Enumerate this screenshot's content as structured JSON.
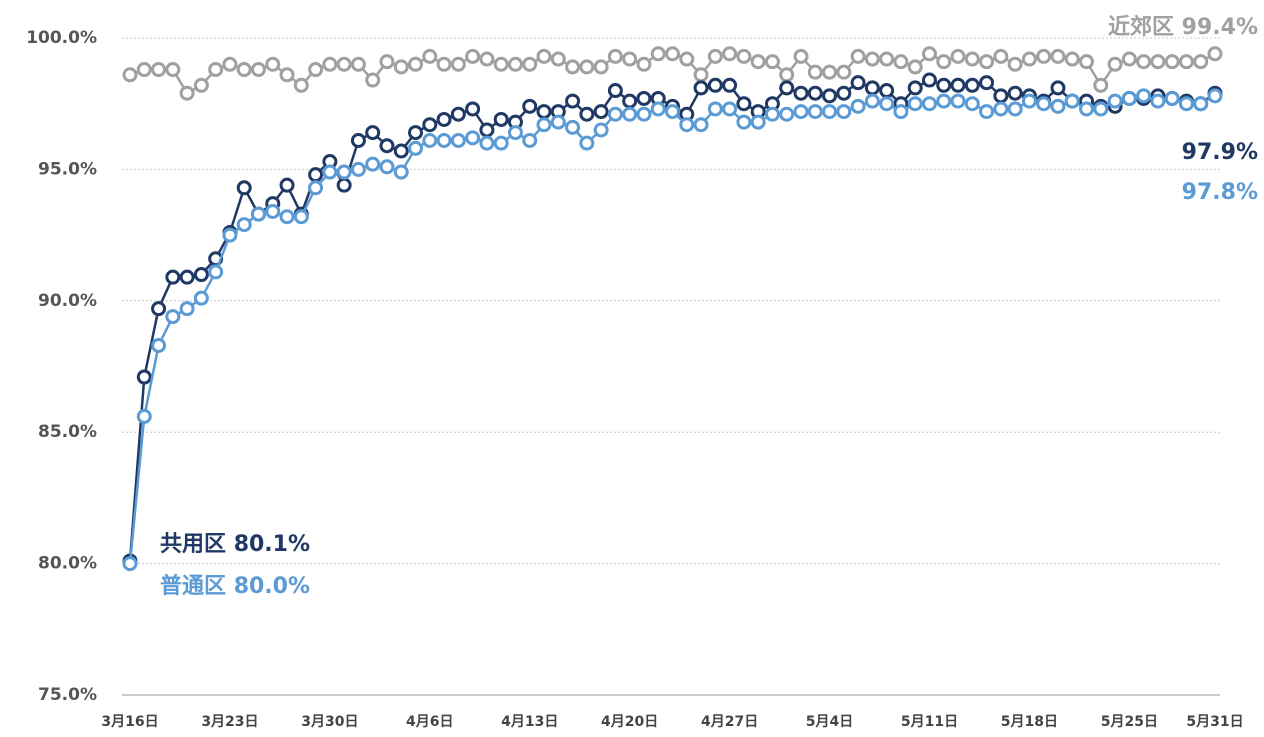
{
  "chart_data": {
    "type": "line",
    "categories": [
      "3月16日",
      null,
      null,
      null,
      null,
      null,
      null,
      "3月23日",
      null,
      null,
      null,
      null,
      null,
      null,
      "3月30日",
      null,
      null,
      null,
      null,
      null,
      null,
      "4月6日",
      null,
      null,
      null,
      null,
      null,
      null,
      "4月13日",
      null,
      null,
      null,
      null,
      null,
      null,
      "4月20日",
      null,
      null,
      null,
      null,
      null,
      null,
      "4月27日",
      null,
      null,
      null,
      null,
      null,
      null,
      "5月4日",
      null,
      null,
      null,
      null,
      null,
      null,
      "5月11日",
      null,
      null,
      null,
      null,
      null,
      null,
      "5月18日",
      null,
      null,
      null,
      null,
      null,
      null,
      "5月25日",
      null,
      null,
      null,
      null,
      null,
      "5月31日"
    ],
    "ylim": [
      75,
      100
    ],
    "yticks": [
      {
        "value": 75,
        "label": "75.0%"
      },
      {
        "value": 80,
        "label": "80.0%"
      },
      {
        "value": 85,
        "label": "85.0%"
      },
      {
        "value": 90,
        "label": "90.0%"
      },
      {
        "value": 95,
        "label": "95.0%"
      },
      {
        "value": 100,
        "label": "100.0%"
      }
    ],
    "grid": true,
    "series": [
      {
        "name": "近郊区",
        "color": "#a0a0a0",
        "values": [
          98.6,
          98.8,
          98.8,
          98.8,
          97.9,
          98.2,
          98.8,
          99.0,
          98.8,
          98.8,
          99.0,
          98.6,
          98.2,
          98.8,
          99.0,
          99.0,
          99.0,
          98.4,
          99.1,
          98.9,
          99.0,
          99.3,
          99.0,
          99.0,
          99.3,
          99.2,
          99.0,
          99.0,
          99.0,
          99.3,
          99.2,
          98.9,
          98.9,
          98.9,
          99.3,
          99.2,
          99.0,
          99.4,
          99.4,
          99.2,
          98.6,
          99.3,
          99.4,
          99.3,
          99.1,
          99.1,
          98.6,
          99.3,
          98.7,
          98.7,
          98.7,
          99.3,
          99.2,
          99.2,
          99.1,
          98.9,
          99.4,
          99.1,
          99.3,
          99.2,
          99.1,
          99.3,
          99.0,
          99.2,
          99.3,
          99.3,
          99.2,
          99.1,
          98.2,
          99.0,
          99.2,
          99.1,
          99.1,
          99.1,
          99.1,
          99.1,
          99.4
        ],
        "value_labels": [
          null,
          null,
          null,
          null,
          null,
          null,
          null,
          null,
          null,
          null,
          null,
          null,
          null,
          null,
          null,
          null,
          null,
          null,
          null,
          null,
          null,
          null,
          null,
          null,
          null,
          null,
          null,
          null,
          null,
          null,
          null,
          null,
          null,
          null,
          null,
          null,
          null,
          null,
          null,
          null,
          null,
          null,
          null,
          null,
          null,
          null,
          null,
          null,
          null,
          null,
          null,
          null,
          null,
          null,
          null,
          null,
          null,
          null,
          null,
          null,
          null,
          null,
          null,
          null,
          null,
          null,
          null,
          null,
          null,
          null,
          null,
          null,
          null,
          null,
          null,
          null,
          "99.4%"
        ]
      },
      {
        "name": "共用区",
        "color": "#1f3864",
        "values": [
          80.1,
          87.1,
          89.7,
          90.9,
          90.9,
          91.0,
          91.6,
          92.6,
          94.3,
          93.3,
          93.7,
          94.4,
          93.3,
          94.8,
          95.3,
          94.4,
          96.1,
          96.4,
          95.9,
          95.7,
          96.4,
          96.7,
          96.9,
          97.1,
          97.3,
          96.5,
          96.9,
          96.8,
          97.4,
          97.2,
          97.2,
          97.6,
          97.1,
          97.2,
          98.0,
          97.6,
          97.7,
          97.7,
          97.4,
          97.1,
          98.1,
          98.2,
          98.2,
          97.5,
          97.2,
          97.5,
          98.1,
          97.9,
          97.9,
          97.8,
          97.9,
          98.3,
          98.1,
          98.0,
          97.5,
          98.1,
          98.4,
          98.2,
          98.2,
          98.2,
          98.3,
          97.8,
          97.9,
          97.8,
          97.6,
          98.1,
          97.6,
          97.6,
          97.4,
          97.4,
          97.7,
          97.7,
          97.8,
          97.7,
          97.6,
          97.5,
          97.9
        ],
        "value_labels": [
          "80.1%",
          null,
          null,
          null,
          null,
          null,
          null,
          null,
          null,
          null,
          null,
          null,
          null,
          null,
          null,
          null,
          null,
          null,
          null,
          null,
          null,
          null,
          null,
          null,
          null,
          null,
          null,
          null,
          null,
          null,
          null,
          null,
          null,
          null,
          null,
          null,
          null,
          null,
          null,
          null,
          null,
          null,
          null,
          null,
          null,
          null,
          null,
          null,
          null,
          null,
          null,
          null,
          null,
          null,
          null,
          null,
          null,
          null,
          null,
          null,
          null,
          null,
          null,
          null,
          null,
          null,
          null,
          null,
          null,
          null,
          null,
          null,
          null,
          null,
          null,
          null,
          "97.9%"
        ]
      },
      {
        "name": "普通区",
        "color": "#5b9bd5",
        "values": [
          80.0,
          85.6,
          88.3,
          89.4,
          89.7,
          90.1,
          91.1,
          92.5,
          92.9,
          93.3,
          93.4,
          93.2,
          93.2,
          94.3,
          94.9,
          94.9,
          95.0,
          95.2,
          95.1,
          94.9,
          95.8,
          96.1,
          96.1,
          96.1,
          96.2,
          96.0,
          96.0,
          96.4,
          96.1,
          96.7,
          96.8,
          96.6,
          96.0,
          96.5,
          97.1,
          97.1,
          97.1,
          97.3,
          97.2,
          96.7,
          96.7,
          97.3,
          97.3,
          96.8,
          96.8,
          97.1,
          97.1,
          97.2,
          97.2,
          97.2,
          97.2,
          97.4,
          97.6,
          97.5,
          97.2,
          97.5,
          97.5,
          97.6,
          97.6,
          97.5,
          97.2,
          97.3,
          97.3,
          97.6,
          97.5,
          97.4,
          97.6,
          97.3,
          97.3,
          97.6,
          97.7,
          97.8,
          97.6,
          97.7,
          97.5,
          97.5,
          97.8
        ],
        "value_labels": [
          "80.0%",
          null,
          null,
          null,
          null,
          null,
          null,
          null,
          null,
          null,
          null,
          null,
          null,
          null,
          null,
          null,
          null,
          null,
          null,
          null,
          null,
          null,
          null,
          null,
          null,
          null,
          null,
          null,
          null,
          null,
          null,
          null,
          null,
          null,
          null,
          null,
          null,
          null,
          null,
          null,
          null,
          null,
          null,
          null,
          null,
          null,
          null,
          null,
          null,
          null,
          null,
          null,
          null,
          null,
          null,
          null,
          null,
          null,
          null,
          null,
          null,
          null,
          null,
          null,
          null,
          null,
          null,
          null,
          null,
          null,
          null,
          null,
          null,
          null,
          null,
          null,
          "97.8%"
        ]
      }
    ]
  }
}
